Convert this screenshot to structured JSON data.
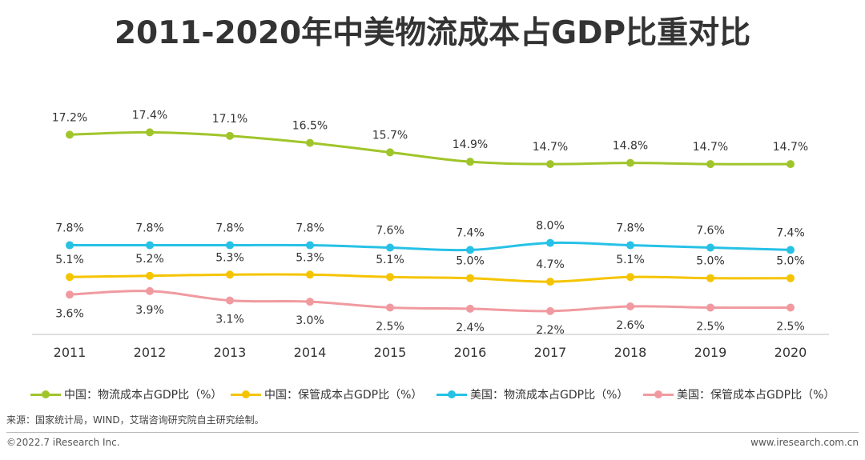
{
  "title": "2011-2020年中美物流成本占GDP比重对比",
  "chart_data": {
    "type": "line",
    "categories": [
      "2011",
      "2012",
      "2013",
      "2014",
      "2015",
      "2016",
      "2017",
      "2018",
      "2019",
      "2020"
    ],
    "ylim": [
      0,
      20
    ],
    "grid": false,
    "legend_position": "bottom",
    "value_suffix": "%",
    "series": [
      {
        "name": "中国：物流成本占GDP比（%）",
        "color": "#a0c52a",
        "label_pos": "above",
        "values": [
          17.2,
          17.4,
          17.1,
          16.5,
          15.7,
          14.9,
          14.7,
          14.8,
          14.7,
          14.7
        ]
      },
      {
        "name": "中国：保管成本占GDP比（%）",
        "color": "#f5c400",
        "label_pos": "above",
        "values": [
          5.1,
          5.2,
          5.3,
          5.3,
          5.1,
          5.0,
          4.7,
          5.1,
          5.0,
          5.0
        ]
      },
      {
        "name": "美国：物流成本占GDP比（%）",
        "color": "#27c1e6",
        "label_pos": "above",
        "values": [
          7.8,
          7.8,
          7.8,
          7.8,
          7.6,
          7.4,
          8.0,
          7.8,
          7.6,
          7.4
        ]
      },
      {
        "name": "美国：保管成本占GDP比（%）",
        "color": "#f09aa0",
        "label_pos": "below",
        "values": [
          3.6,
          3.9,
          3.1,
          3.0,
          2.5,
          2.4,
          2.2,
          2.6,
          2.5,
          2.5
        ]
      }
    ]
  },
  "source": "来源：国家统计局，WIND，艾瑞咨询研究院自主研究绘制。",
  "footer": {
    "copyright": "©2022.7 iResearch Inc.",
    "website": "www.iresearch.com.cn"
  }
}
